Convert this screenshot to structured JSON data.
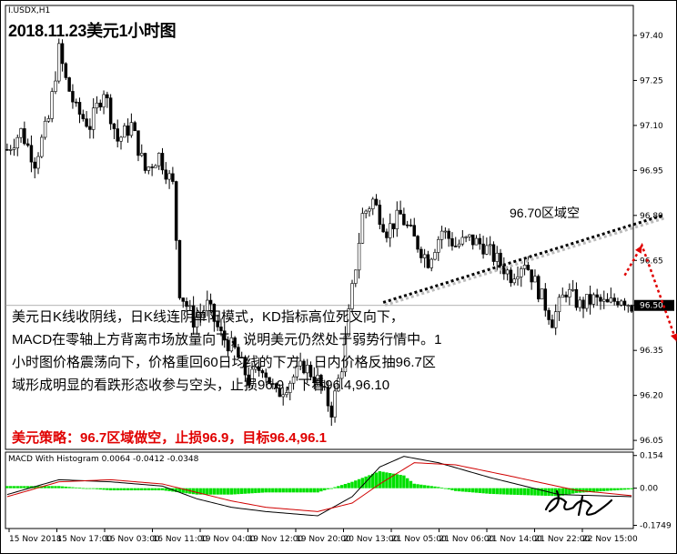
{
  "symbol_label": "I.USDX,H1",
  "title": "2018.11.23美元1小时图",
  "note_lines": [
    "美元日K线收阴线，日K线连阴单阳模式，KD指标高位死叉向下，",
    "MACD在零轴上方背离市场放量向下，说明美元仍然处于弱势行情中。1",
    "小时图价格震荡向下，价格重回60日均线的下方，日内价格反抽96.7区",
    "域形成明显的看跌形态收参与空头，止损96.9，下看96.4,96.10"
  ],
  "strategy": "美元策略：96.7区域做空，止损96.9，目标96.4,96.1",
  "zone_label": "96.70区域空",
  "macd_label": "MACD With Histogram 0.0064 -0.0412 -0.0348",
  "colors": {
    "bull": "#000000",
    "bear": "#000000",
    "macd_hist": "#00e000",
    "macd_line": "#000000",
    "signal_line": "#d00000",
    "arrow": "#e00000",
    "trendline": "#000000"
  },
  "chart_data": {
    "type": "candlestick",
    "price_axis": {
      "ylim": [
        96.02,
        97.5
      ],
      "ticks": [
        "97.40",
        "97.25",
        "97.10",
        "96.95",
        "96.80",
        "96.65",
        "96.50",
        "96.35",
        "96.20",
        "96.05"
      ],
      "current_price": "96.50"
    },
    "macd_axis": {
      "ylim": [
        -0.19,
        0.17
      ],
      "ticks": [
        "0.154",
        "0.00",
        "-0.1749"
      ]
    },
    "time_ticks": [
      "15 Nov 2018",
      "15 Nov 17:00",
      "16 Nov 03:00",
      "16 Nov 11:00",
      "19 Nov 04:00",
      "19 Nov 12:00",
      "19 Nov 20:00",
      "20 Nov 13:00",
      "21 Nov 05:00",
      "21 Nov 06:00",
      "21 Nov 14:00",
      "21 Nov 22:00",
      "22 Nov 15:00"
    ],
    "price_anchors": [
      [
        0,
        97.02
      ],
      [
        4,
        97.08
      ],
      [
        8,
        96.98
      ],
      [
        12,
        97.12
      ],
      [
        15,
        97.35
      ],
      [
        17,
        97.25
      ],
      [
        20,
        97.15
      ],
      [
        24,
        97.1
      ],
      [
        28,
        97.22
      ],
      [
        32,
        97.05
      ],
      [
        36,
        97.1
      ],
      [
        40,
        96.95
      ],
      [
        44,
        97.0
      ],
      [
        48,
        96.9
      ],
      [
        50,
        96.55
      ],
      [
        54,
        96.45
      ],
      [
        58,
        96.5
      ],
      [
        62,
        96.4
      ],
      [
        66,
        96.35
      ],
      [
        70,
        96.25
      ],
      [
        74,
        96.3
      ],
      [
        78,
        96.2
      ],
      [
        82,
        96.25
      ],
      [
        86,
        96.3
      ],
      [
        90,
        96.25
      ],
      [
        94,
        96.15
      ],
      [
        97,
        96.3
      ],
      [
        100,
        96.55
      ],
      [
        103,
        96.8
      ],
      [
        106,
        96.85
      ],
      [
        110,
        96.75
      ],
      [
        114,
        96.8
      ],
      [
        118,
        96.72
      ],
      [
        122,
        96.65
      ],
      [
        126,
        96.75
      ],
      [
        130,
        96.7
      ],
      [
        134,
        96.72
      ],
      [
        138,
        96.7
      ],
      [
        142,
        96.65
      ],
      [
        146,
        96.6
      ],
      [
        150,
        96.65
      ],
      [
        154,
        96.55
      ],
      [
        158,
        96.45
      ],
      [
        162,
        96.55
      ],
      [
        166,
        96.5
      ],
      [
        170,
        96.52
      ],
      [
        174,
        96.5
      ],
      [
        178,
        96.53
      ],
      [
        181,
        96.5
      ]
    ],
    "macd_anchors": [
      [
        0,
        -0.03
      ],
      [
        15,
        0.04
      ],
      [
        30,
        0.03
      ],
      [
        45,
        0.01
      ],
      [
        55,
        -0.05
      ],
      [
        65,
        -0.09
      ],
      [
        75,
        -0.11
      ],
      [
        90,
        -0.13
      ],
      [
        100,
        -0.04
      ],
      [
        108,
        0.1
      ],
      [
        115,
        0.15
      ],
      [
        125,
        0.12
      ],
      [
        140,
        0.05
      ],
      [
        160,
        -0.03
      ],
      [
        181,
        -0.04
      ]
    ],
    "signal_anchors": [
      [
        0,
        -0.04
      ],
      [
        15,
        0.03
      ],
      [
        30,
        0.04
      ],
      [
        45,
        0.02
      ],
      [
        55,
        -0.02
      ],
      [
        65,
        -0.06
      ],
      [
        75,
        -0.09
      ],
      [
        90,
        -0.11
      ],
      [
        100,
        -0.07
      ],
      [
        108,
        0.02
      ],
      [
        118,
        0.12
      ],
      [
        130,
        0.11
      ],
      [
        145,
        0.06
      ],
      [
        165,
        -0.01
      ],
      [
        181,
        -0.035
      ]
    ],
    "trendline": {
      "from": [
        109,
        96.51
      ],
      "to": [
        190,
        96.8
      ]
    },
    "arrow_path": [
      [
        179,
        96.6
      ],
      [
        184,
        96.7
      ],
      [
        194,
        96.38
      ]
    ]
  }
}
